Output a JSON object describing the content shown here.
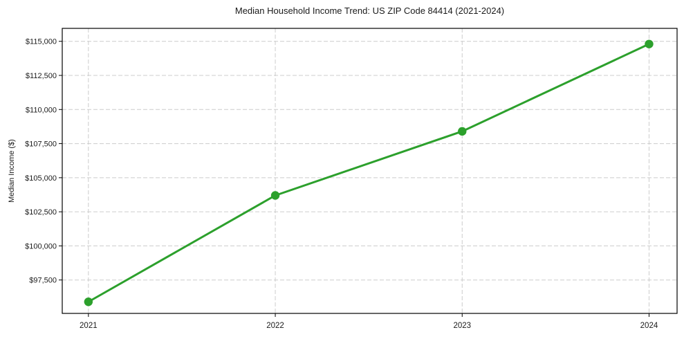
{
  "chart_data": {
    "type": "line",
    "title": "Median Household Income Trend: US ZIP Code 84414 (2021-2024)",
    "xlabel": "",
    "ylabel": "Median Income ($)",
    "x": [
      2021,
      2022,
      2023,
      2024
    ],
    "x_tick_labels": [
      "2021",
      "2022",
      "2023",
      "2024"
    ],
    "series": [
      {
        "name": "Median Household Income",
        "values": [
          95900,
          103700,
          108400,
          114800
        ]
      }
    ],
    "y_ticks": [
      97500,
      100000,
      102500,
      105000,
      107500,
      110000,
      112500,
      115000
    ],
    "y_tick_labels": [
      "$97,500",
      "$100,000",
      "$102,500",
      "$105,000",
      "$107,500",
      "$110,000",
      "$112,500",
      "$115,000"
    ],
    "xlim": [
      2020.86,
      2024.15
    ],
    "ylim": [
      95050,
      115950
    ],
    "grid": true,
    "legend": "none",
    "colors": {
      "line": "#2ca02c",
      "marker": "#2ca02c",
      "grid": "#cccccc",
      "axis": "#000000",
      "text": "#1a1a1a"
    }
  }
}
